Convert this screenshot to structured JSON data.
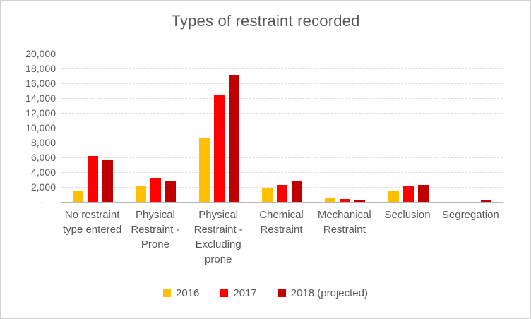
{
  "chart_data": {
    "type": "bar",
    "title": "Types of restraint recorded",
    "categories": [
      "No restraint type entered",
      "Physical Restraint - Prone",
      "Physical Restraint - Excluding prone",
      "Chemical Restraint",
      "Mechanical Restraint",
      "Seclusion",
      "Segregation"
    ],
    "series": [
      {
        "name": "2016",
        "color": "#FFC000",
        "values": [
          1500,
          2200,
          8600,
          1800,
          500,
          1400,
          0
        ]
      },
      {
        "name": "2017",
        "color": "#FF0000",
        "values": [
          6200,
          3200,
          14400,
          2300,
          400,
          2100,
          0
        ]
      },
      {
        "name": "2018 (projected)",
        "color": "#C00000",
        "values": [
          5600,
          2800,
          17100,
          2800,
          300,
          2300,
          200
        ]
      }
    ],
    "y_axis": {
      "min": 0,
      "max": 20000,
      "step": 2000,
      "tick_labels": [
        "20,000",
        "18,000",
        "16,000",
        "14,000",
        "12,000",
        "10,000",
        "8,000",
        "6,000",
        "4,000",
        "2,000",
        "-"
      ]
    },
    "grid": true,
    "legend_position": "bottom",
    "colors": {
      "text": "#595959",
      "gridline": "#dcdcdc",
      "axis_line": "#b7b7b7"
    }
  }
}
